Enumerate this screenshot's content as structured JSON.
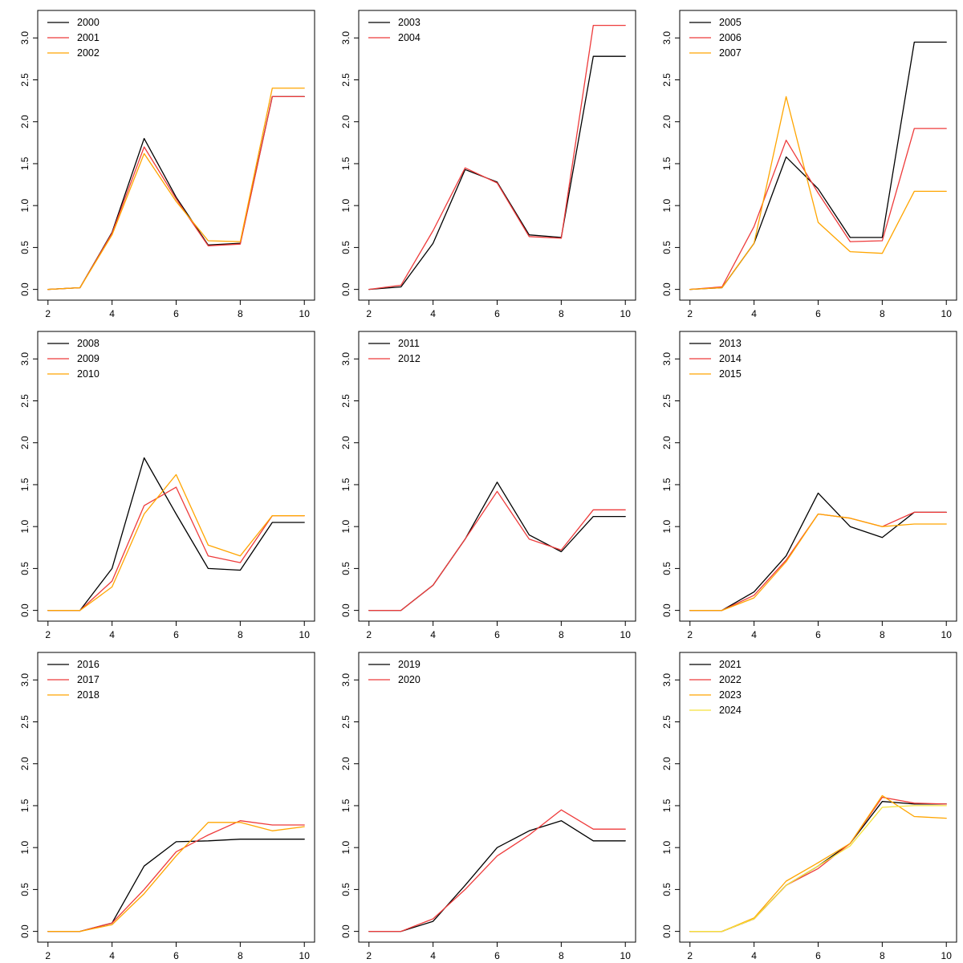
{
  "figure": {
    "description": "3x3 grid of R-style line charts, yearly series 2000-2024",
    "axis_color": "#000000",
    "background": "#ffffff"
  },
  "chart_data": [
    {
      "type": "line",
      "x": [
        2,
        3,
        4,
        5,
        6,
        7,
        8,
        9,
        10
      ],
      "xticks": [
        "2",
        "4",
        "6",
        "8",
        "10"
      ],
      "yticks": [
        "0.0",
        "0.5",
        "1.0",
        "1.5",
        "2.0",
        "2.5",
        "3.0"
      ],
      "xlim": [
        2,
        10
      ],
      "ylim": [
        0,
        3.2
      ],
      "legend_position": "topleft",
      "series": [
        {
          "name": "2000",
          "color": "#000000",
          "values": [
            0.0,
            0.02,
            0.68,
            1.8,
            1.1,
            0.53,
            0.55,
            2.3,
            2.3
          ]
        },
        {
          "name": "2001",
          "color": "#EE3B3B",
          "values": [
            0.0,
            0.02,
            0.67,
            1.7,
            1.08,
            0.52,
            0.54,
            2.3,
            2.3
          ]
        },
        {
          "name": "2002",
          "color": "#FFA500",
          "values": [
            0.0,
            0.02,
            0.65,
            1.62,
            1.05,
            0.58,
            0.57,
            2.4,
            2.4
          ]
        }
      ]
    },
    {
      "type": "line",
      "x": [
        2,
        3,
        4,
        5,
        6,
        7,
        8,
        9,
        10
      ],
      "xticks": [
        "2",
        "4",
        "6",
        "8",
        "10"
      ],
      "yticks": [
        "0.0",
        "0.5",
        "1.0",
        "1.5",
        "2.0",
        "2.5",
        "3.0"
      ],
      "xlim": [
        2,
        10
      ],
      "ylim": [
        0,
        3.2
      ],
      "legend_position": "topleft",
      "series": [
        {
          "name": "2003",
          "color": "#000000",
          "values": [
            0.0,
            0.03,
            0.55,
            1.43,
            1.28,
            0.65,
            0.62,
            2.78,
            2.78
          ]
        },
        {
          "name": "2004",
          "color": "#EE3B3B",
          "values": [
            0.0,
            0.05,
            0.7,
            1.45,
            1.27,
            0.63,
            0.61,
            3.15,
            3.15
          ]
        }
      ]
    },
    {
      "type": "line",
      "x": [
        2,
        3,
        4,
        5,
        6,
        7,
        8,
        9,
        10
      ],
      "xticks": [
        "2",
        "4",
        "6",
        "8",
        "10"
      ],
      "yticks": [
        "0.0",
        "0.5",
        "1.0",
        "1.5",
        "2.0",
        "2.5",
        "3.0"
      ],
      "xlim": [
        2,
        10
      ],
      "ylim": [
        0,
        3.2
      ],
      "legend_position": "topleft",
      "series": [
        {
          "name": "2005",
          "color": "#000000",
          "values": [
            0.0,
            0.02,
            0.55,
            1.58,
            1.2,
            0.62,
            0.62,
            2.95,
            2.95
          ]
        },
        {
          "name": "2006",
          "color": "#EE3B3B",
          "values": [
            0.0,
            0.03,
            0.75,
            1.78,
            1.15,
            0.57,
            0.58,
            1.92,
            1.92
          ]
        },
        {
          "name": "2007",
          "color": "#FFA500",
          "values": [
            0.0,
            0.02,
            0.55,
            2.3,
            0.8,
            0.45,
            0.43,
            1.17,
            1.17
          ]
        }
      ]
    },
    {
      "type": "line",
      "x": [
        2,
        3,
        4,
        5,
        6,
        7,
        8,
        9,
        10
      ],
      "xticks": [
        "2",
        "4",
        "6",
        "8",
        "10"
      ],
      "yticks": [
        "0.0",
        "0.5",
        "1.0",
        "1.5",
        "2.0",
        "2.5",
        "3.0"
      ],
      "xlim": [
        2,
        10
      ],
      "ylim": [
        0,
        3.2
      ],
      "legend_position": "topleft",
      "series": [
        {
          "name": "2008",
          "color": "#000000",
          "values": [
            0.0,
            0.0,
            0.5,
            1.82,
            1.15,
            0.5,
            0.48,
            1.05,
            1.05
          ]
        },
        {
          "name": "2009",
          "color": "#EE3B3B",
          "values": [
            0.0,
            0.0,
            0.35,
            1.25,
            1.47,
            0.65,
            0.57,
            1.13,
            1.13
          ]
        },
        {
          "name": "2010",
          "color": "#FFA500",
          "values": [
            0.0,
            0.0,
            0.28,
            1.15,
            1.62,
            0.78,
            0.65,
            1.13,
            1.13
          ]
        }
      ]
    },
    {
      "type": "line",
      "x": [
        2,
        3,
        4,
        5,
        6,
        7,
        8,
        9,
        10
      ],
      "xticks": [
        "2",
        "4",
        "6",
        "8",
        "10"
      ],
      "yticks": [
        "0.0",
        "0.5",
        "1.0",
        "1.5",
        "2.0",
        "2.5",
        "3.0"
      ],
      "xlim": [
        2,
        10
      ],
      "ylim": [
        0,
        3.2
      ],
      "legend_position": "topleft",
      "series": [
        {
          "name": "2011",
          "color": "#000000",
          "values": [
            0.0,
            0.0,
            0.3,
            0.85,
            1.53,
            0.9,
            0.7,
            1.12,
            1.12
          ]
        },
        {
          "name": "2012",
          "color": "#EE3B3B",
          "values": [
            0.0,
            0.0,
            0.3,
            0.85,
            1.42,
            0.85,
            0.72,
            1.2,
            1.2
          ]
        }
      ]
    },
    {
      "type": "line",
      "x": [
        2,
        3,
        4,
        5,
        6,
        7,
        8,
        9,
        10
      ],
      "xticks": [
        "2",
        "4",
        "6",
        "8",
        "10"
      ],
      "yticks": [
        "0.0",
        "0.5",
        "1.0",
        "1.5",
        "2.0",
        "2.5",
        "3.0"
      ],
      "xlim": [
        2,
        10
      ],
      "ylim": [
        0,
        3.2
      ],
      "legend_position": "topleft",
      "series": [
        {
          "name": "2013",
          "color": "#000000",
          "values": [
            0.0,
            0.0,
            0.22,
            0.65,
            1.4,
            1.0,
            0.87,
            1.17,
            1.17
          ]
        },
        {
          "name": "2014",
          "color": "#EE3B3B",
          "values": [
            0.0,
            0.0,
            0.18,
            0.6,
            1.15,
            1.1,
            1.0,
            1.17,
            1.17
          ]
        },
        {
          "name": "2015",
          "color": "#FFA500",
          "values": [
            0.0,
            0.0,
            0.15,
            0.58,
            1.15,
            1.1,
            1.0,
            1.03,
            1.03
          ]
        }
      ]
    },
    {
      "type": "line",
      "x": [
        2,
        3,
        4,
        5,
        6,
        7,
        8,
        9,
        10
      ],
      "xticks": [
        "2",
        "4",
        "6",
        "8",
        "10"
      ],
      "yticks": [
        "0.0",
        "0.5",
        "1.0",
        "1.5",
        "2.0",
        "2.5",
        "3.0"
      ],
      "xlim": [
        2,
        10
      ],
      "ylim": [
        0,
        3.2
      ],
      "legend_position": "topleft",
      "series": [
        {
          "name": "2016",
          "color": "#000000",
          "values": [
            0.0,
            0.0,
            0.1,
            0.78,
            1.07,
            1.08,
            1.1,
            1.1,
            1.1
          ]
        },
        {
          "name": "2017",
          "color": "#EE3B3B",
          "values": [
            0.0,
            0.0,
            0.1,
            0.5,
            0.95,
            1.15,
            1.32,
            1.27,
            1.27
          ]
        },
        {
          "name": "2018",
          "color": "#FFA500",
          "values": [
            0.0,
            0.0,
            0.08,
            0.45,
            0.9,
            1.3,
            1.3,
            1.2,
            1.25
          ]
        }
      ]
    },
    {
      "type": "line",
      "x": [
        2,
        3,
        4,
        5,
        6,
        7,
        8,
        9,
        10
      ],
      "xticks": [
        "2",
        "4",
        "6",
        "8",
        "10"
      ],
      "yticks": [
        "0.0",
        "0.5",
        "1.0",
        "1.5",
        "2.0",
        "2.5",
        "3.0"
      ],
      "xlim": [
        2,
        10
      ],
      "ylim": [
        0,
        3.2
      ],
      "legend_position": "topleft",
      "series": [
        {
          "name": "2019",
          "color": "#000000",
          "values": [
            0.0,
            0.0,
            0.12,
            0.55,
            1.0,
            1.2,
            1.32,
            1.08,
            1.08
          ]
        },
        {
          "name": "2020",
          "color": "#EE3B3B",
          "values": [
            0.0,
            0.0,
            0.15,
            0.5,
            0.9,
            1.15,
            1.45,
            1.22,
            1.22
          ]
        }
      ]
    },
    {
      "type": "line",
      "x": [
        2,
        3,
        4,
        5,
        6,
        7,
        8,
        9,
        10
      ],
      "xticks": [
        "2",
        "4",
        "6",
        "8",
        "10"
      ],
      "yticks": [
        "0.0",
        "0.5",
        "1.0",
        "1.5",
        "2.0",
        "2.5",
        "3.0"
      ],
      "xlim": [
        2,
        10
      ],
      "ylim": [
        0,
        3.2
      ],
      "legend_position": "topleft",
      "series": [
        {
          "name": "2021",
          "color": "#000000",
          "values": [
            0.0,
            0.0,
            0.15,
            0.55,
            0.78,
            1.05,
            1.55,
            1.52,
            1.52
          ]
        },
        {
          "name": "2022",
          "color": "#EE3B3B",
          "values": [
            0.0,
            0.0,
            0.15,
            0.55,
            0.75,
            1.05,
            1.6,
            1.53,
            1.52
          ]
        },
        {
          "name": "2023",
          "color": "#FFA500",
          "values": [
            0.0,
            0.0,
            0.16,
            0.6,
            0.82,
            1.05,
            1.62,
            1.37,
            1.35
          ]
        },
        {
          "name": "2024",
          "color": "#F5E23C",
          "values": [
            0.0,
            0.0,
            0.15,
            0.55,
            0.78,
            1.02,
            1.48,
            1.5,
            1.5
          ]
        }
      ]
    }
  ]
}
